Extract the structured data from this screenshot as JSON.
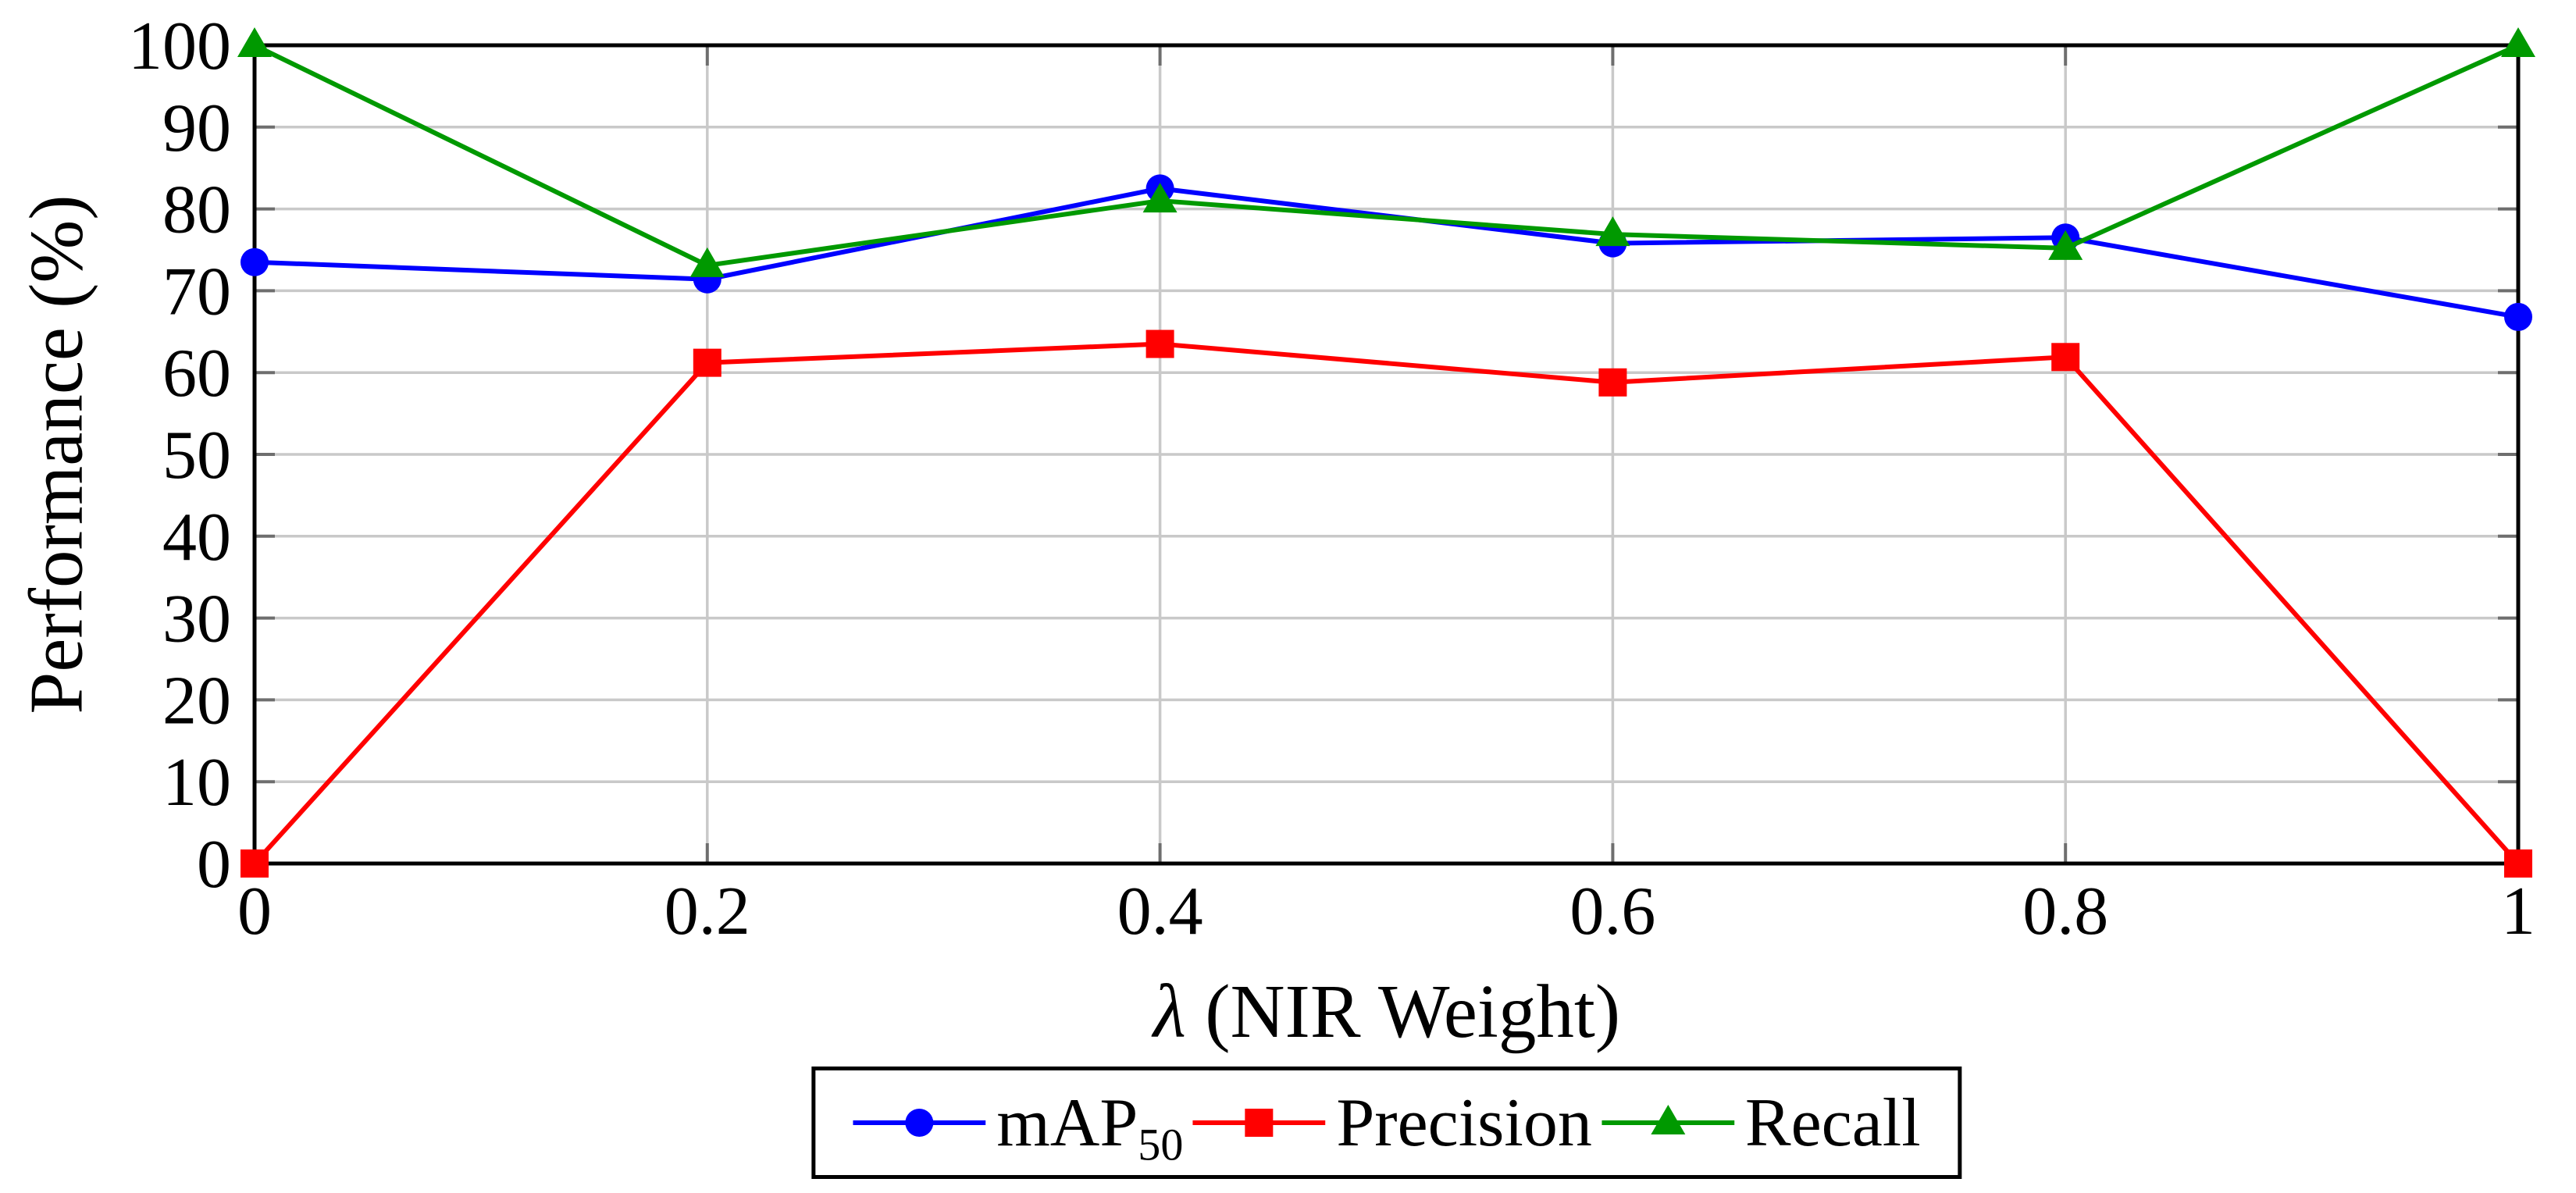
{
  "chart_data": {
    "type": "line",
    "title": "",
    "xlabel_lambda": "λ",
    "xlabel_rest": " (NIR Weight)",
    "xlabel_full": "λ (NIR Weight)",
    "ylabel": "Performance (%)",
    "xlim": [
      0,
      1
    ],
    "ylim": [
      0,
      100
    ],
    "x": [
      0,
      0.2,
      0.4,
      0.6,
      0.8,
      1
    ],
    "xtick_labels": [
      "0",
      "0.2",
      "0.4",
      "0.6",
      "0.8",
      "1"
    ],
    "ytick_values": [
      0,
      10,
      20,
      30,
      40,
      50,
      60,
      70,
      80,
      90,
      100
    ],
    "grid": true,
    "legend_position": "below-chart",
    "colors": {
      "grid": "#c9c9c9",
      "axis": "#000000",
      "tick": "#6e6e6e",
      "background": "#ffffff"
    },
    "series": [
      {
        "name": "mAP50",
        "label_main": "mAP",
        "label_sub": "50",
        "marker": "circle",
        "color": "#0000ff",
        "values": [
          73.5,
          71.4,
          82.5,
          75.8,
          76.5,
          66.8
        ]
      },
      {
        "name": "Precision",
        "label_main": "Precision",
        "label_sub": "",
        "marker": "square",
        "color": "#ff0000",
        "values": [
          0,
          61.2,
          63.5,
          58.8,
          61.9,
          0
        ]
      },
      {
        "name": "Recall",
        "label_main": "Recall",
        "label_sub": "",
        "marker": "triangle",
        "color": "#009900",
        "values": [
          100,
          73.1,
          81,
          76.9,
          75.2,
          100
        ]
      }
    ]
  }
}
